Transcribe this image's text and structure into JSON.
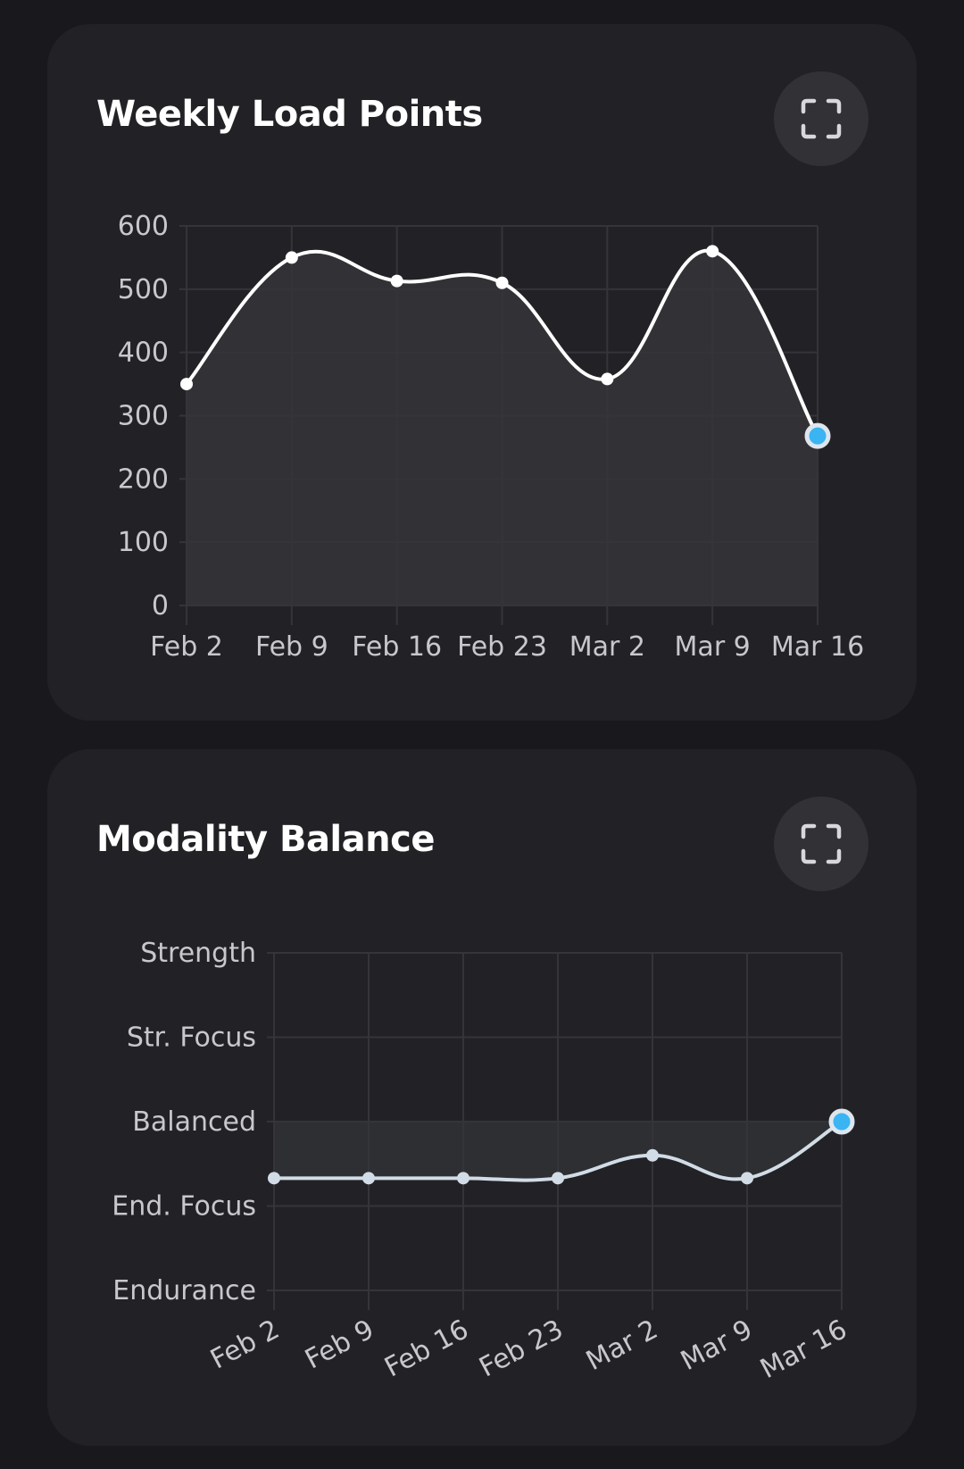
{
  "chart_data": [
    {
      "type": "area",
      "title": "Weekly Load Points",
      "categories": [
        "Feb 2",
        "Feb 9",
        "Feb 16",
        "Feb 23",
        "Mar 2",
        "Mar 9",
        "Mar 16"
      ],
      "values": [
        350,
        550,
        513,
        510,
        358,
        560,
        268
      ],
      "yticks": [
        "0",
        "100",
        "200",
        "300",
        "400",
        "500",
        "600"
      ],
      "ylim": [
        0,
        600
      ],
      "xlabel": "",
      "ylabel": "",
      "grid": true,
      "highlight_index": 6,
      "line_color": "#ffffff",
      "highlight_color": "#3ab4f2"
    },
    {
      "type": "area",
      "title": "Modality Balance",
      "categories": [
        "Feb 2",
        "Feb 9",
        "Feb 16",
        "Feb 23",
        "Mar 2",
        "Mar 9",
        "Mar 16"
      ],
      "values": [
        -0.67,
        -0.67,
        -0.67,
        -0.67,
        -0.4,
        -0.67,
        0
      ],
      "yticks": [
        "Endurance",
        "End. Focus",
        "Balanced",
        "Str. Focus",
        "Strength"
      ],
      "ylim": [
        -2,
        2
      ],
      "xlabel": "",
      "ylabel": "",
      "grid": true,
      "baseline": 0,
      "highlight_index": 6,
      "line_color": "#d2dce6",
      "highlight_color": "#3ab4f2"
    }
  ]
}
